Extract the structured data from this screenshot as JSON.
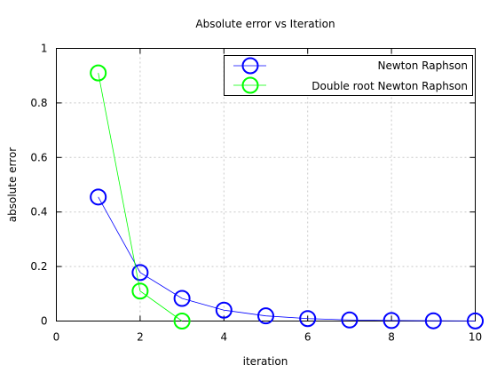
{
  "chart_data": {
    "type": "line",
    "title": "Absolute error vs Iteration",
    "xlabel": "iteration",
    "ylabel": "absolute error",
    "xlim": [
      0,
      10
    ],
    "ylim": [
      0,
      1
    ],
    "xticks": [
      0,
      2,
      4,
      6,
      8,
      10
    ],
    "yticks": [
      0,
      0.2,
      0.4,
      0.6,
      0.8,
      1
    ],
    "xtick_labels": [
      "0",
      "2",
      "4",
      "6",
      "8",
      "10"
    ],
    "ytick_labels": [
      "0",
      "0.2",
      "0.4",
      "0.6",
      "0.8",
      "1"
    ],
    "grid": true,
    "legend_position": "top-right",
    "series": [
      {
        "name": "Newton Raphson",
        "color": "#0000ff",
        "marker": "circle",
        "x": [
          1,
          2,
          3,
          4,
          5,
          6,
          7,
          8,
          9,
          10
        ],
        "y": [
          0.455,
          0.178,
          0.083,
          0.04,
          0.019,
          0.009,
          0.004,
          0.002,
          0.001,
          0.0005
        ]
      },
      {
        "name": "Double root Newton Raphson",
        "color": "#00ff00",
        "marker": "circle",
        "x": [
          1,
          2,
          3
        ],
        "y": [
          0.91,
          0.11,
          0.0
        ]
      }
    ]
  }
}
